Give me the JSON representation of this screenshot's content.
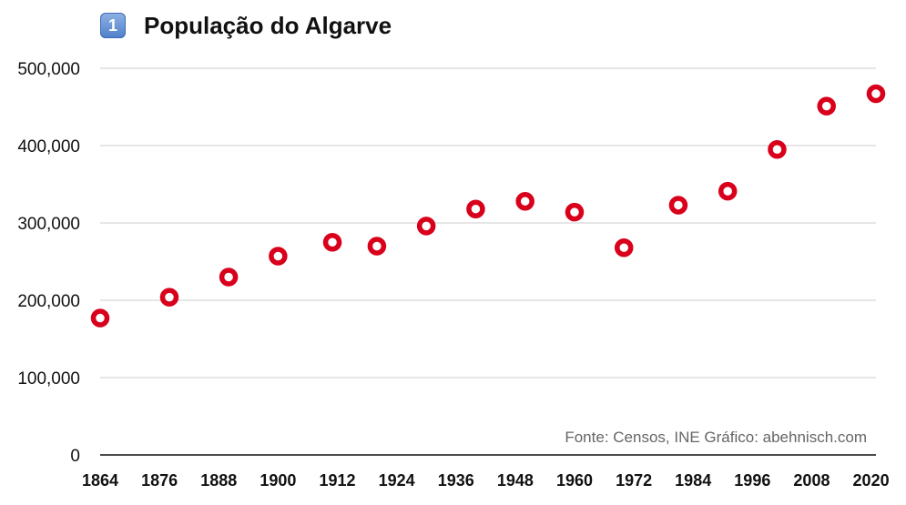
{
  "header": {
    "badge": "1",
    "title": "População do Algarve"
  },
  "source_note": "Fonte: Censos, INE  Gráfico: abehnisch.com",
  "colors": {
    "marker": "#d9001b",
    "grid": "#cccccc",
    "axis": "#111111"
  },
  "chart_data": {
    "type": "scatter",
    "title": "População do Algarve",
    "xlabel": "",
    "ylabel": "",
    "xlim": [
      1864,
      2021
    ],
    "ylim": [
      0,
      500000
    ],
    "y_ticks": [
      0,
      100000,
      200000,
      300000,
      400000,
      500000
    ],
    "y_tick_labels": [
      "0",
      "100,000",
      "200,000",
      "300,000",
      "400,000",
      "500,000"
    ],
    "x_ticks": [
      1864,
      1876,
      1888,
      1900,
      1912,
      1924,
      1936,
      1948,
      1960,
      1972,
      1984,
      1996,
      2008,
      2020
    ],
    "x_tick_labels": [
      "1864",
      "1876",
      "1888",
      "1900",
      "1912",
      "1924",
      "1936",
      "1948",
      "1960",
      "1972",
      "1984",
      "1996",
      "2008",
      "2020"
    ],
    "grid": true,
    "series": [
      {
        "x": [
          1864,
          1878,
          1890,
          1900,
          1911,
          1920,
          1930,
          1940,
          1950,
          1960,
          1970,
          1981,
          1991,
          2001,
          2011,
          2021
        ],
        "y": [
          177000,
          204000,
          230000,
          257000,
          275000,
          270000,
          296000,
          318000,
          328000,
          314000,
          268000,
          323000,
          341000,
          395000,
          451000,
          467000
        ]
      }
    ]
  }
}
